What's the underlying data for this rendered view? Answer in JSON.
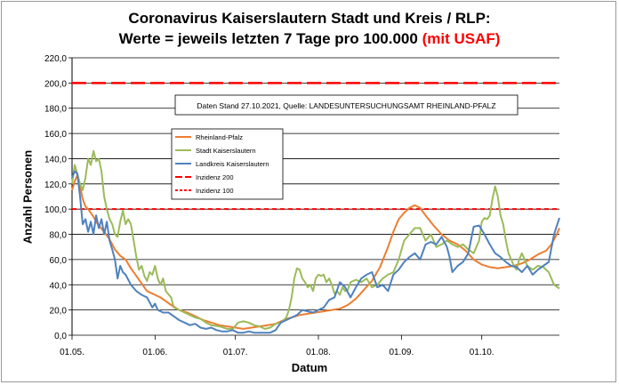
{
  "chart_data": {
    "type": "line",
    "title_line1": "Coronavirus Kaiserslautern Stadt und Kreis / RLP:",
    "title_line2": "Werte = jeweils letzten 7 Tage pro 100.000 ",
    "title_line2_highlight": "(mit USAF)",
    "annotation": "Daten Stand 27.10.2021, Quelle: LANDESUNTERSUCHUNGSAMT RHEINLAND-PFALZ",
    "xlabel": "Datum",
    "ylabel": "Anzahl Personen",
    "ylim": [
      0,
      220
    ],
    "xlim": [
      0,
      182
    ],
    "y_ticks": [
      "0,0",
      "20,0",
      "40,0",
      "60,0",
      "80,0",
      "100,0",
      "120,0",
      "140,0",
      "160,0",
      "180,0",
      "200,0",
      "220,0"
    ],
    "x_ticks": [
      {
        "label": "01.05.",
        "day": 0
      },
      {
        "label": "01.06.",
        "day": 31
      },
      {
        "label": "01.07.",
        "day": 61
      },
      {
        "label": "01.08.",
        "day": 92
      },
      {
        "label": "01.09.",
        "day": 123
      },
      {
        "label": "01.10.",
        "day": 153
      }
    ],
    "grid": true,
    "legend_position": "upper-left (inside plot)",
    "colors": {
      "rlp": "#ed7d31",
      "stadt": "#9bbb59",
      "kreis": "#4f81bd",
      "inz200": "#ff0000",
      "inz100": "#ff0000"
    },
    "thresholds": [
      {
        "name": "Inzidenz 200",
        "value": 200,
        "style": "long-dash",
        "color": "#ff0000"
      },
      {
        "name": "Inzidenz 100",
        "value": 100,
        "style": "short-dash",
        "color": "#ff0000"
      }
    ],
    "series": [
      {
        "name": "Rheinland-Pfalz",
        "color": "#ed7d31",
        "points": [
          [
            0,
            115
          ],
          [
            1,
            122
          ],
          [
            2,
            127
          ],
          [
            3,
            118
          ],
          [
            4,
            108
          ],
          [
            5,
            102
          ],
          [
            6,
            100
          ],
          [
            7,
            97
          ],
          [
            8,
            94
          ],
          [
            9,
            90
          ],
          [
            10,
            87
          ],
          [
            12,
            82
          ],
          [
            14,
            76
          ],
          [
            16,
            68
          ],
          [
            18,
            63
          ],
          [
            20,
            60
          ],
          [
            22,
            53
          ],
          [
            24,
            47
          ],
          [
            26,
            41
          ],
          [
            28,
            35
          ],
          [
            30,
            33
          ],
          [
            31,
            32
          ],
          [
            33,
            30
          ],
          [
            35,
            27
          ],
          [
            37,
            24
          ],
          [
            40,
            20
          ],
          [
            43,
            18
          ],
          [
            46,
            15
          ],
          [
            49,
            12
          ],
          [
            52,
            10
          ],
          [
            55,
            8
          ],
          [
            58,
            7
          ],
          [
            61,
            6
          ],
          [
            64,
            5
          ],
          [
            67,
            6
          ],
          [
            70,
            7
          ],
          [
            73,
            8
          ],
          [
            76,
            9
          ],
          [
            78,
            11
          ],
          [
            80,
            13
          ],
          [
            82,
            14
          ],
          [
            85,
            16
          ],
          [
            88,
            17
          ],
          [
            91,
            18
          ],
          [
            94,
            19
          ],
          [
            97,
            20
          ],
          [
            100,
            21
          ],
          [
            103,
            24
          ],
          [
            106,
            29
          ],
          [
            109,
            36
          ],
          [
            112,
            43
          ],
          [
            115,
            54
          ],
          [
            118,
            70
          ],
          [
            120,
            82
          ],
          [
            122,
            92
          ],
          [
            124,
            97
          ],
          [
            126,
            101
          ],
          [
            128,
            103
          ],
          [
            130,
            101
          ],
          [
            132,
            95
          ],
          [
            135,
            87
          ],
          [
            138,
            80
          ],
          [
            141,
            75
          ],
          [
            144,
            72
          ],
          [
            147,
            67
          ],
          [
            150,
            60
          ],
          [
            153,
            56
          ],
          [
            156,
            54
          ],
          [
            159,
            53
          ],
          [
            162,
            54
          ],
          [
            165,
            55
          ],
          [
            168,
            57
          ],
          [
            171,
            60
          ],
          [
            174,
            64
          ],
          [
            177,
            67
          ],
          [
            179,
            72
          ],
          [
            181,
            80
          ],
          [
            182,
            85
          ]
        ]
      },
      {
        "name": "Stadt Kaiserslautern",
        "color": "#9bbb59",
        "points": [
          [
            0,
            120
          ],
          [
            1,
            135
          ],
          [
            2,
            128
          ],
          [
            3,
            120
          ],
          [
            4,
            115
          ],
          [
            5,
            125
          ],
          [
            6,
            140
          ],
          [
            7,
            135
          ],
          [
            8,
            146
          ],
          [
            9,
            138
          ],
          [
            10,
            140
          ],
          [
            11,
            130
          ],
          [
            12,
            110
          ],
          [
            13,
            100
          ],
          [
            14,
            92
          ],
          [
            15,
            88
          ],
          [
            16,
            80
          ],
          [
            17,
            78
          ],
          [
            18,
            90
          ],
          [
            19,
            99
          ],
          [
            20,
            88
          ],
          [
            21,
            92
          ],
          [
            22,
            88
          ],
          [
            23,
            75
          ],
          [
            24,
            62
          ],
          [
            25,
            52
          ],
          [
            26,
            55
          ],
          [
            27,
            47
          ],
          [
            28,
            43
          ],
          [
            29,
            50
          ],
          [
            30,
            48
          ],
          [
            31,
            55
          ],
          [
            32,
            45
          ],
          [
            33,
            40
          ],
          [
            34,
            45
          ],
          [
            35,
            35
          ],
          [
            37,
            30
          ],
          [
            38,
            22
          ],
          [
            40,
            20
          ],
          [
            42,
            18
          ],
          [
            44,
            16
          ],
          [
            46,
            14
          ],
          [
            48,
            13
          ],
          [
            50,
            10
          ],
          [
            52,
            8
          ],
          [
            55,
            7
          ],
          [
            58,
            5
          ],
          [
            60,
            5
          ],
          [
            62,
            10
          ],
          [
            64,
            11
          ],
          [
            66,
            10
          ],
          [
            68,
            8
          ],
          [
            70,
            7
          ],
          [
            72,
            5
          ],
          [
            74,
            6
          ],
          [
            76,
            9
          ],
          [
            78,
            10
          ],
          [
            80,
            14
          ],
          [
            81,
            20
          ],
          [
            82,
            30
          ],
          [
            83,
            45
          ],
          [
            84,
            53
          ],
          [
            85,
            52
          ],
          [
            86,
            45
          ],
          [
            87,
            42
          ],
          [
            88,
            38
          ],
          [
            89,
            40
          ],
          [
            90,
            35
          ],
          [
            91,
            45
          ],
          [
            92,
            48
          ],
          [
            93,
            47
          ],
          [
            94,
            48
          ],
          [
            95,
            42
          ],
          [
            96,
            45
          ],
          [
            97,
            40
          ],
          [
            98,
            33
          ],
          [
            99,
            35
          ],
          [
            100,
            32
          ],
          [
            101,
            38
          ],
          [
            102,
            35
          ],
          [
            103,
            36
          ],
          [
            104,
            42
          ],
          [
            106,
            44
          ],
          [
            108,
            42
          ],
          [
            110,
            45
          ],
          [
            112,
            38
          ],
          [
            114,
            40
          ],
          [
            116,
            45
          ],
          [
            118,
            48
          ],
          [
            120,
            50
          ],
          [
            122,
            60
          ],
          [
            124,
            75
          ],
          [
            126,
            80
          ],
          [
            128,
            85
          ],
          [
            130,
            85
          ],
          [
            132,
            75
          ],
          [
            134,
            80
          ],
          [
            136,
            70
          ],
          [
            138,
            72
          ],
          [
            140,
            75
          ],
          [
            142,
            72
          ],
          [
            144,
            70
          ],
          [
            146,
            72
          ],
          [
            148,
            68
          ],
          [
            150,
            65
          ],
          [
            152,
            75
          ],
          [
            153,
            90
          ],
          [
            154,
            93
          ],
          [
            155,
            92
          ],
          [
            156,
            95
          ],
          [
            157,
            108
          ],
          [
            158,
            118
          ],
          [
            159,
            110
          ],
          [
            160,
            95
          ],
          [
            161,
            88
          ],
          [
            162,
            75
          ],
          [
            163,
            65
          ],
          [
            164,
            60
          ],
          [
            165,
            55
          ],
          [
            166,
            52
          ],
          [
            167,
            60
          ],
          [
            168,
            65
          ],
          [
            170,
            55
          ],
          [
            172,
            52
          ],
          [
            174,
            55
          ],
          [
            176,
            54
          ],
          [
            178,
            50
          ],
          [
            180,
            40
          ],
          [
            182,
            37
          ]
        ]
      },
      {
        "name": "Landkreis Kaiserslautern",
        "color": "#4f81bd",
        "points": [
          [
            0,
            125
          ],
          [
            1,
            130
          ],
          [
            2,
            128
          ],
          [
            3,
            110
          ],
          [
            4,
            88
          ],
          [
            5,
            92
          ],
          [
            6,
            82
          ],
          [
            7,
            90
          ],
          [
            8,
            80
          ],
          [
            9,
            95
          ],
          [
            10,
            85
          ],
          [
            11,
            92
          ],
          [
            12,
            80
          ],
          [
            13,
            90
          ],
          [
            14,
            75
          ],
          [
            15,
            68
          ],
          [
            16,
            60
          ],
          [
            17,
            45
          ],
          [
            18,
            55
          ],
          [
            19,
            50
          ],
          [
            20,
            48
          ],
          [
            22,
            40
          ],
          [
            24,
            35
          ],
          [
            26,
            32
          ],
          [
            28,
            30
          ],
          [
            30,
            22
          ],
          [
            31,
            25
          ],
          [
            32,
            20
          ],
          [
            34,
            18
          ],
          [
            36,
            18
          ],
          [
            38,
            15
          ],
          [
            40,
            12
          ],
          [
            42,
            10
          ],
          [
            44,
            8
          ],
          [
            46,
            9
          ],
          [
            48,
            6
          ],
          [
            50,
            5
          ],
          [
            52,
            6
          ],
          [
            54,
            4
          ],
          [
            56,
            3
          ],
          [
            58,
            3
          ],
          [
            60,
            4
          ],
          [
            62,
            2
          ],
          [
            64,
            2
          ],
          [
            66,
            3
          ],
          [
            68,
            2
          ],
          [
            70,
            2
          ],
          [
            72,
            2
          ],
          [
            74,
            2
          ],
          [
            76,
            4
          ],
          [
            78,
            10
          ],
          [
            80,
            12
          ],
          [
            82,
            14
          ],
          [
            84,
            16
          ],
          [
            86,
            20
          ],
          [
            88,
            19
          ],
          [
            90,
            18
          ],
          [
            92,
            20
          ],
          [
            94,
            22
          ],
          [
            96,
            28
          ],
          [
            98,
            30
          ],
          [
            100,
            42
          ],
          [
            102,
            38
          ],
          [
            104,
            30
          ],
          [
            106,
            38
          ],
          [
            108,
            45
          ],
          [
            110,
            48
          ],
          [
            112,
            50
          ],
          [
            114,
            38
          ],
          [
            116,
            40
          ],
          [
            118,
            35
          ],
          [
            120,
            48
          ],
          [
            122,
            52
          ],
          [
            124,
            58
          ],
          [
            126,
            62
          ],
          [
            128,
            65
          ],
          [
            130,
            60
          ],
          [
            132,
            72
          ],
          [
            134,
            74
          ],
          [
            136,
            72
          ],
          [
            138,
            78
          ],
          [
            140,
            70
          ],
          [
            141,
            62
          ],
          [
            142,
            50
          ],
          [
            144,
            55
          ],
          [
            146,
            58
          ],
          [
            148,
            65
          ],
          [
            150,
            86
          ],
          [
            152,
            87
          ],
          [
            154,
            80
          ],
          [
            156,
            72
          ],
          [
            158,
            65
          ],
          [
            160,
            62
          ],
          [
            162,
            58
          ],
          [
            164,
            55
          ],
          [
            166,
            54
          ],
          [
            168,
            50
          ],
          [
            170,
            55
          ],
          [
            172,
            48
          ],
          [
            174,
            52
          ],
          [
            176,
            55
          ],
          [
            178,
            58
          ],
          [
            180,
            80
          ],
          [
            182,
            93
          ]
        ]
      }
    ]
  },
  "legend": [
    {
      "key": "rlp",
      "label": "Rheinland-Pfalz",
      "style": "solid"
    },
    {
      "key": "stadt",
      "label": "Stadt Kaiserslautern",
      "style": "solid"
    },
    {
      "key": "kreis",
      "label": "Landkreis Kaiserslautern",
      "style": "solid"
    },
    {
      "key": "inz200",
      "label": "Inzidenz 200",
      "style": "long-dash"
    },
    {
      "key": "inz100",
      "label": "Inzidenz 100",
      "style": "short-dash"
    }
  ]
}
